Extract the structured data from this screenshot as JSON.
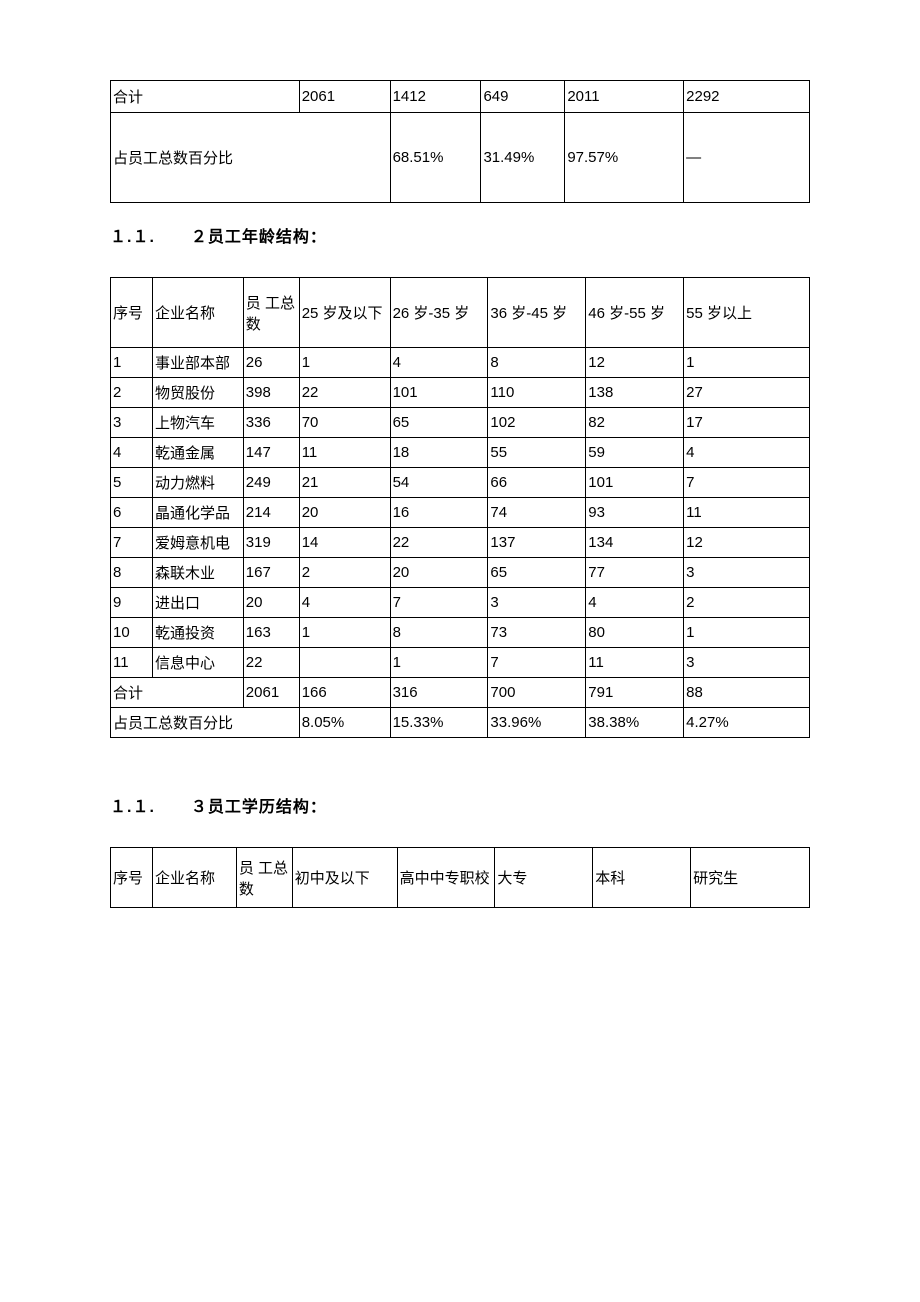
{
  "table1": {
    "columns_widths": [
      "27%",
      "13%",
      "13%",
      "12%",
      "17%",
      "18%"
    ],
    "rows": [
      {
        "cells": [
          "合计",
          "2061",
          "1412",
          "649",
          "2011",
          "2292"
        ],
        "colspans": [
          1,
          1,
          1,
          1,
          1,
          1
        ],
        "classRow": ""
      },
      {
        "cells": [
          "占员工总数百分比",
          "68.51%",
          "31.49%",
          "97.57%",
          "—"
        ],
        "colspans": [
          2,
          1,
          1,
          1,
          1
        ],
        "classRow": "row2"
      }
    ]
  },
  "heading2": {
    "prefix": "１.１.",
    "text": "２员工年龄结构："
  },
  "table2": {
    "header": [
      {
        "label": "序号",
        "width": "6%"
      },
      {
        "label": "企业名称",
        "width": "13%"
      },
      {
        "label": "员 工总数",
        "width": "8%"
      },
      {
        "label": "25 岁及以下",
        "width": "13%"
      },
      {
        "label": "26 岁-35 岁",
        "width": "14%"
      },
      {
        "label": "36 岁-45 岁",
        "width": "14%"
      },
      {
        "label": "46 岁-55 岁",
        "width": "14%"
      },
      {
        "label": "55 岁以上",
        "width": "18%"
      }
    ],
    "rows": [
      [
        "1",
        "事业部本部",
        "26",
        "1",
        "4",
        "8",
        "12",
        "1"
      ],
      [
        "2",
        "物贸股份",
        "398",
        "22",
        "101",
        "110",
        "138",
        "27"
      ],
      [
        "3",
        "上物汽车",
        "336",
        "70",
        "65",
        "102",
        "82",
        "17"
      ],
      [
        "4",
        "乾通金属",
        "147",
        "11",
        "18",
        "55",
        "59",
        "4"
      ],
      [
        "5",
        "动力燃料",
        "249",
        "21",
        "54",
        "66",
        "101",
        "7"
      ],
      [
        "6",
        "晶通化学品",
        "214",
        "20",
        "16",
        "74",
        "93",
        "11"
      ],
      [
        "7",
        "爱姆意机电",
        "319",
        "14",
        "22",
        "137",
        "134",
        "12"
      ],
      [
        "8",
        "森联木业",
        "167",
        "2",
        "20",
        "65",
        "77",
        "3"
      ],
      [
        "9",
        "进出口",
        "20",
        "4",
        "7",
        "3",
        "4",
        "2"
      ],
      [
        "10",
        "乾通投资",
        "163",
        "1",
        "8",
        "73",
        "80",
        "1"
      ],
      [
        "11",
        "信息中心",
        "22",
        "",
        "1",
        "7",
        "11",
        "3"
      ]
    ],
    "total_row": {
      "cells": [
        "合计",
        "2061",
        "166",
        "316",
        "700",
        "791",
        "88"
      ],
      "colspans": [
        2,
        1,
        1,
        1,
        1,
        1,
        1
      ]
    },
    "percent_row": {
      "cells": [
        "占员工总数百分比",
        "8.05%",
        "15.33%",
        "33.96%",
        "38.38%",
        "4.27%"
      ],
      "colspans": [
        3,
        1,
        1,
        1,
        1,
        1
      ]
    }
  },
  "heading3": {
    "prefix": "１.１.",
    "text": "３员工学历结构："
  },
  "table3": {
    "header": [
      {
        "label": "序号",
        "width": "6%"
      },
      {
        "label": "企业名称",
        "width": "12%"
      },
      {
        "label": "员 工总数",
        "width": "8%"
      },
      {
        "label": "初中及以下",
        "width": "15%"
      },
      {
        "label": "高中中专职校",
        "width": "14%"
      },
      {
        "label": "大专",
        "width": "14%"
      },
      {
        "label": "本科",
        "width": "14%"
      },
      {
        "label": "研究生",
        "width": "17%"
      }
    ]
  }
}
